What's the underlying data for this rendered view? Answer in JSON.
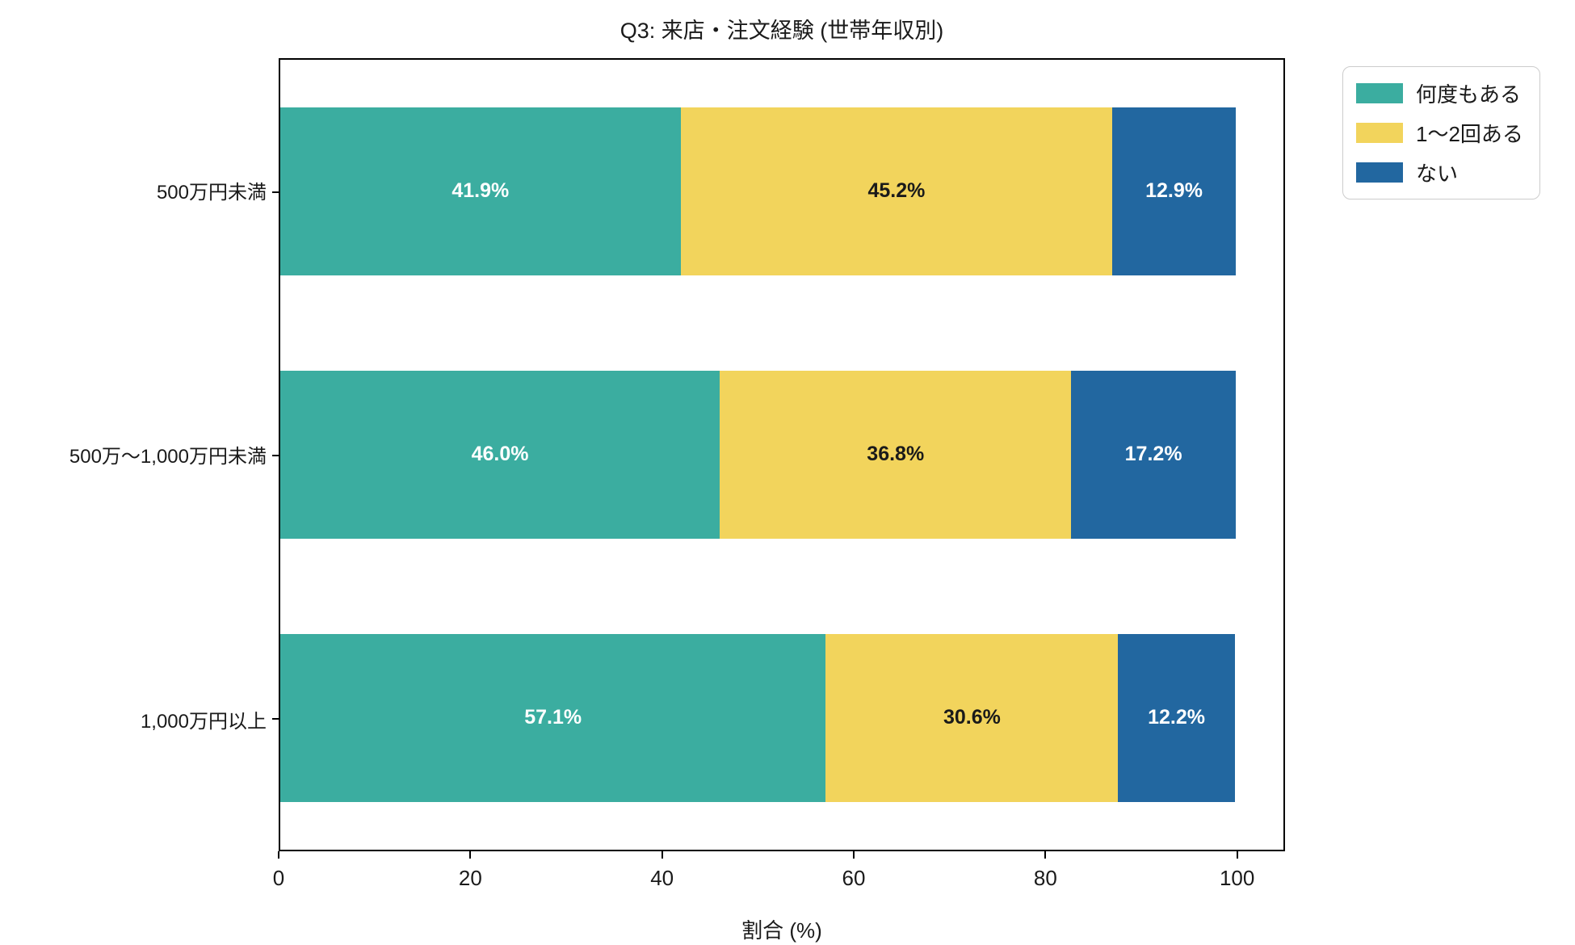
{
  "title": "Q3: 来店・注文経験 (世帯年収別)",
  "xlabel": "割合 (%)",
  "chart_data": {
    "type": "bar",
    "orientation": "horizontal",
    "stacked": true,
    "title": "Q3: 来店・注文経験 (世帯年収別)",
    "xlabel": "割合 (%)",
    "ylabel": "",
    "categories": [
      "500万円未満",
      "500万〜1,000万円未満",
      "1,000万円以上"
    ],
    "series": [
      {
        "name": "何度もある",
        "color": "#3bada0",
        "label_color": "#ffffff",
        "values": [
          41.9,
          46.0,
          57.1
        ],
        "labels": [
          "41.9%",
          "46.0%",
          "57.1%"
        ]
      },
      {
        "name": "1〜2回ある",
        "color": "#f2d45c",
        "label_color": "#1a1a1a",
        "values": [
          45.2,
          36.8,
          30.6
        ],
        "labels": [
          "45.2%",
          "36.8%",
          "30.6%"
        ]
      },
      {
        "name": "ない",
        "color": "#2267a0",
        "label_color": "#ffffff",
        "values": [
          12.9,
          17.2,
          12.2
        ],
        "labels": [
          "12.9%",
          "17.2%",
          "12.2%"
        ]
      }
    ],
    "x_ticks": [
      0,
      20,
      40,
      60,
      80,
      100
    ],
    "xlim": [
      0,
      105
    ],
    "grid": false,
    "legend_position": "outside-upper-right",
    "spine_color": "#000000",
    "background_color": "#ffffff"
  }
}
